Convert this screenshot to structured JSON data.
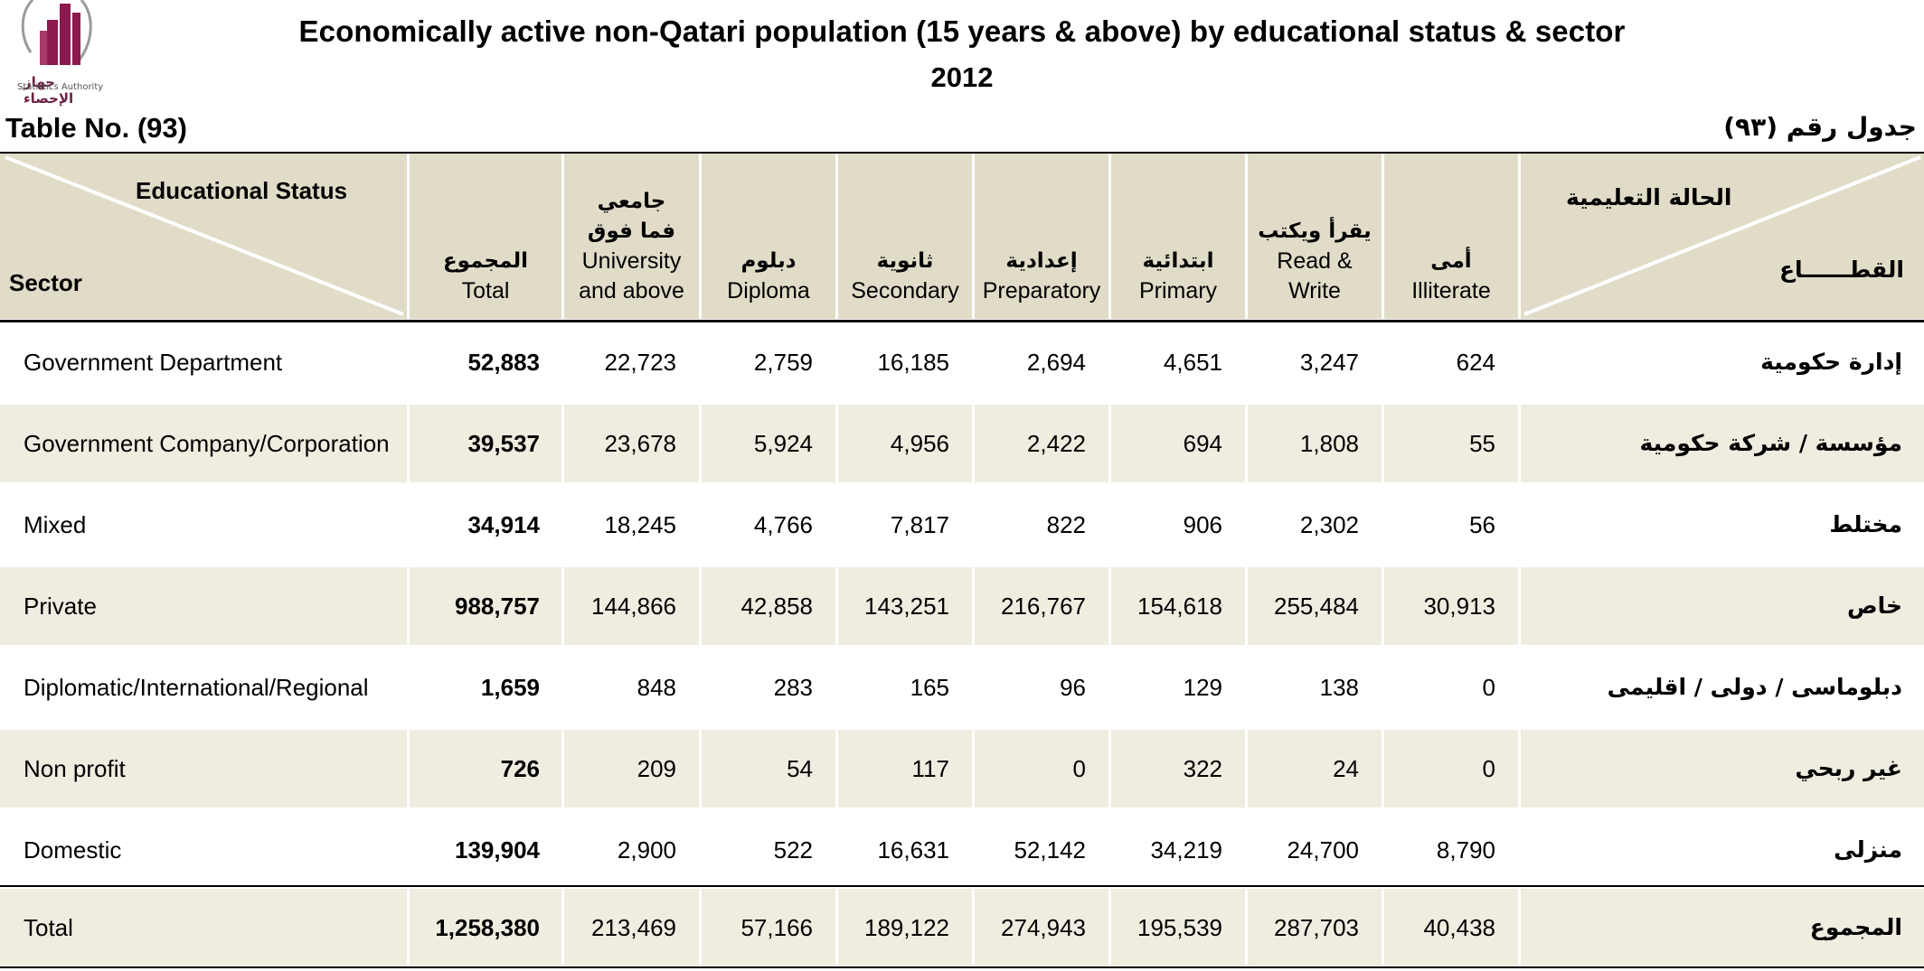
{
  "logo": {
    "name_ar": "جهاز الإحصاء",
    "name_en": "Statistics Authority",
    "color": "#8b1a4f"
  },
  "title": "Economically active non-Qatari population (15 years & above) by educational status & sector",
  "year": "2012",
  "table_no": "Table No. (93)",
  "table_no_ar": "جدول رقم (٩٣)",
  "header": {
    "corner_status_en": "Educational Status",
    "corner_sector_en": "Sector",
    "corner_status_ar": "الحالة التعليمية",
    "corner_sector_ar": "القطــــــاع",
    "columns": [
      {
        "ar": "المجموع",
        "en": "Total"
      },
      {
        "ar": "جامعي فما فوق",
        "en": "University and above"
      },
      {
        "ar": "دبلوم",
        "en": "Diploma"
      },
      {
        "ar": "ثانوية",
        "en": "Secondary"
      },
      {
        "ar": "إعدادية",
        "en": "Preparatory"
      },
      {
        "ar": "ابتدائية",
        "en": "Primary"
      },
      {
        "ar": "يقرأ ويكتب",
        "en": "Read & Write"
      },
      {
        "ar": "أمى",
        "en": "Illiterate"
      }
    ]
  },
  "rows": [
    {
      "en": "Government Department",
      "ar": "إدارة حكومية",
      "values": [
        "52,883",
        "22,723",
        "2,759",
        "16,185",
        "2,694",
        "4,651",
        "3,247",
        "624"
      ]
    },
    {
      "en": "Government Company/Corporation",
      "ar": "مؤسسة / شركة حكومية",
      "values": [
        "39,537",
        "23,678",
        "5,924",
        "4,956",
        "2,422",
        "694",
        "1,808",
        "55"
      ]
    },
    {
      "en": "Mixed",
      "ar": "مختلط",
      "values": [
        "34,914",
        "18,245",
        "4,766",
        "7,817",
        "822",
        "906",
        "2,302",
        "56"
      ]
    },
    {
      "en": "Private",
      "ar": "خاص",
      "values": [
        "988,757",
        "144,866",
        "42,858",
        "143,251",
        "216,767",
        "154,618",
        "255,484",
        "30,913"
      ]
    },
    {
      "en": "Diplomatic/International/Regional",
      "ar": "دبلوماسى / دولى / اقليمى",
      "values": [
        "1,659",
        "848",
        "283",
        "165",
        "96",
        "129",
        "138",
        "0"
      ]
    },
    {
      "en": "Non profit",
      "ar": "غير ربحي",
      "values": [
        "726",
        "209",
        "54",
        "117",
        "0",
        "322",
        "24",
        "0"
      ]
    },
    {
      "en": "Domestic",
      "ar": "منزلى",
      "values": [
        "139,904",
        "2,900",
        "522",
        "16,631",
        "52,142",
        "34,219",
        "24,700",
        "8,790"
      ]
    }
  ],
  "total_row": {
    "en": "Total",
    "ar": "المجموع",
    "values": [
      "1,258,380",
      "213,469",
      "57,166",
      "189,122",
      "274,943",
      "195,539",
      "287,703",
      "40,438"
    ]
  }
}
